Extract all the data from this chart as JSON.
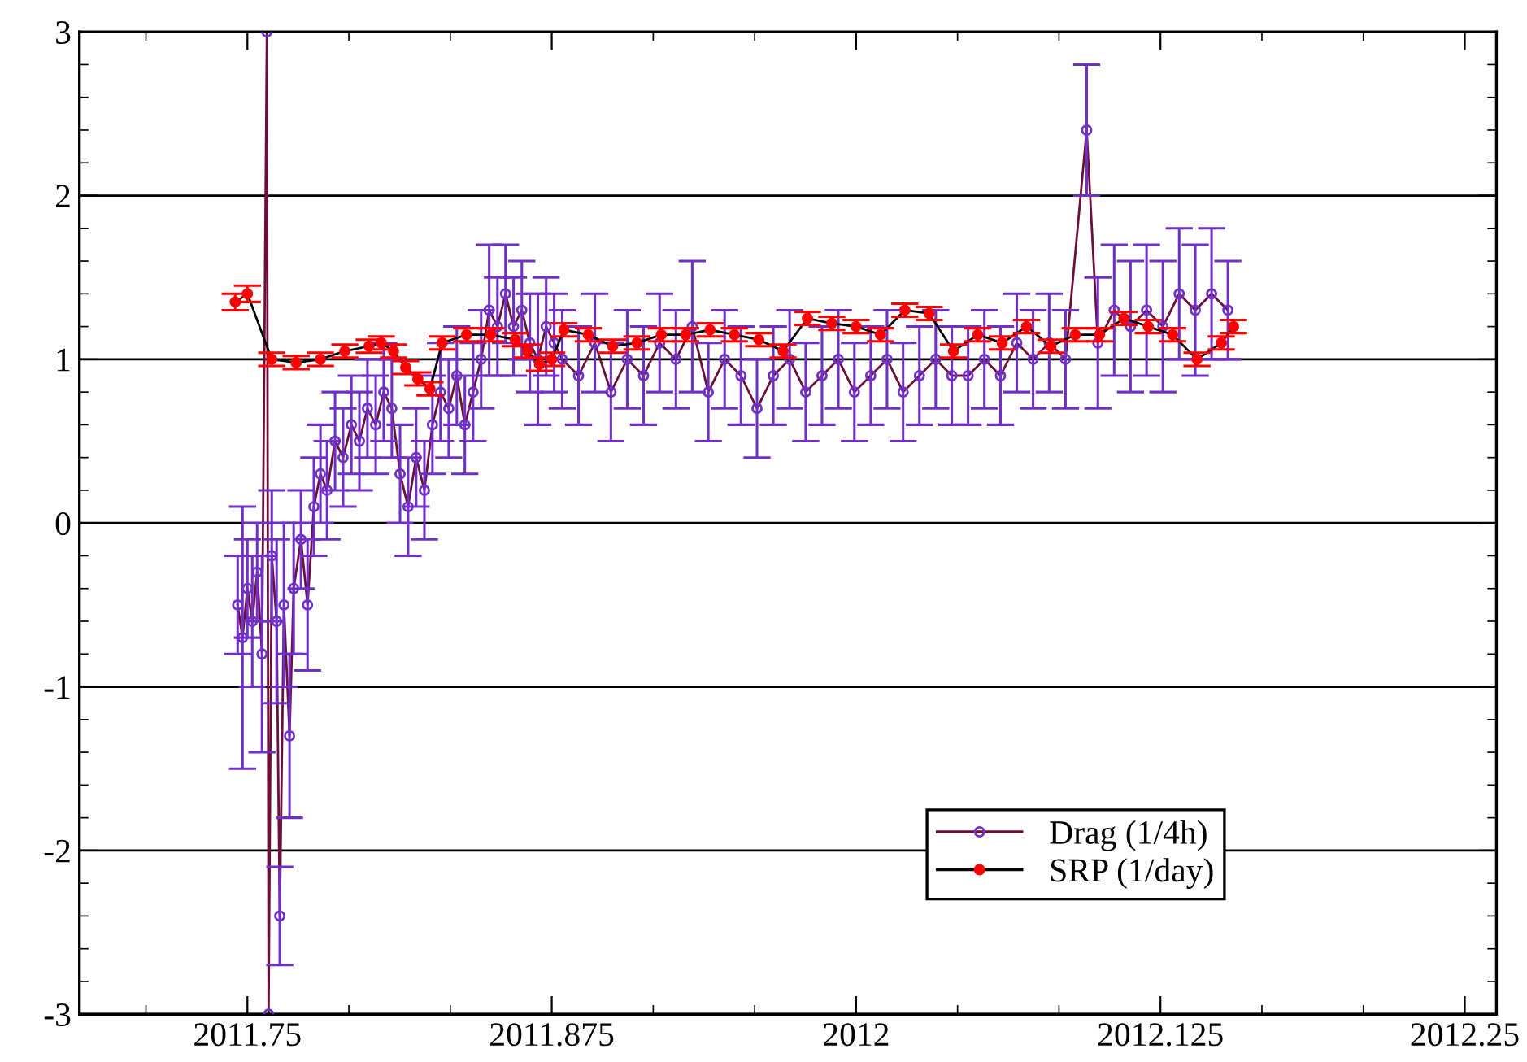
{
  "chart_data": {
    "type": "line",
    "xlim": [
      2011.681,
      2012.263
    ],
    "ylim": [
      -3,
      3
    ],
    "xticks": [
      2011.75,
      2011.875,
      2012,
      2012.125,
      2012.25
    ],
    "yticks": [
      -3,
      -2,
      -1,
      0,
      1,
      2,
      3
    ],
    "grid": "y",
    "legend": "bottom right",
    "marker": "circle",
    "series": [
      {
        "name": "Drag (1/4h)",
        "color": "#7030c8",
        "x": [
          2011.746,
          2011.748,
          2011.75,
          2011.752,
          2011.754,
          2011.756,
          2011.758,
          2011.7587,
          2011.76,
          2011.762,
          2011.7633,
          2011.765,
          2011.7673,
          2011.769,
          2011.772,
          2011.7747,
          2011.7773,
          2011.78,
          2011.7827,
          2011.786,
          2011.7893,
          2011.7927,
          2011.796,
          2011.7993,
          2011.8027,
          2011.806,
          2011.8093,
          2011.8127,
          2011.816,
          2011.8193,
          2011.8227,
          2011.826,
          2011.8293,
          2011.8327,
          2011.836,
          2011.8393,
          2011.8427,
          2011.846,
          2011.8493,
          2011.8527,
          2011.856,
          2011.8593,
          2011.8627,
          2011.866,
          2011.8693,
          2011.8727,
          2011.876,
          2011.8793,
          2011.886,
          2011.8927,
          2011.8993,
          2011.906,
          2011.9127,
          2011.9193,
          2011.926,
          2011.9327,
          2011.9393,
          2011.946,
          2011.9527,
          2011.9593,
          2011.966,
          2011.9727,
          2011.9793,
          2011.986,
          2011.9927,
          2011.9993,
          2012.006,
          2012.0127,
          2012.0193,
          2012.026,
          2012.0327,
          2012.0393,
          2012.046,
          2012.0527,
          2012.0593,
          2012.066,
          2012.0727,
          2012.0793,
          2012.086,
          2012.0947,
          2012.0993,
          2012.106,
          2012.1127,
          2012.1193,
          2012.126,
          2012.1327,
          2012.1393,
          2012.146,
          2012.1527
        ],
        "values": [
          -0.5,
          -0.7,
          -0.4,
          -0.6,
          -0.3,
          -0.8,
          3.0,
          -3.0,
          -0.2,
          -0.6,
          -2.4,
          -0.5,
          -1.3,
          -0.4,
          -0.1,
          -0.5,
          0.1,
          0.3,
          0.2,
          0.5,
          0.4,
          0.6,
          0.5,
          0.7,
          0.6,
          0.8,
          0.7,
          0.3,
          0.1,
          0.4,
          0.2,
          0.6,
          0.8,
          0.7,
          0.9,
          0.6,
          0.8,
          1.0,
          1.3,
          1.2,
          1.4,
          1.2,
          1.3,
          1.1,
          1.0,
          1.2,
          1.1,
          1.0,
          0.9,
          1.1,
          0.8,
          1.0,
          0.9,
          1.1,
          1.0,
          1.2,
          0.8,
          1.0,
          0.9,
          0.7,
          0.9,
          1.0,
          0.8,
          0.9,
          1.0,
          0.8,
          0.9,
          1.0,
          0.8,
          0.9,
          1.0,
          0.9,
          0.9,
          1.0,
          0.9,
          1.1,
          1.0,
          1.1,
          1.0,
          2.4,
          1.1,
          1.3,
          1.2,
          1.3,
          1.2,
          1.4,
          1.3,
          1.4,
          1.3
        ],
        "errors": [
          0.3,
          0.8,
          0.3,
          0.4,
          0.3,
          0.6,
          null,
          null,
          0.4,
          0.5,
          0.3,
          0.5,
          0.5,
          0.4,
          0.3,
          0.4,
          0.3,
          0.3,
          0.3,
          0.3,
          0.3,
          0.3,
          0.3,
          0.3,
          0.3,
          0.3,
          0.3,
          0.3,
          0.3,
          0.3,
          0.3,
          0.3,
          0.3,
          0.3,
          0.3,
          0.3,
          0.3,
          0.3,
          0.4,
          0.3,
          0.3,
          0.3,
          0.3,
          0.3,
          0.4,
          0.3,
          0.3,
          0.3,
          0.3,
          0.3,
          0.3,
          0.3,
          0.3,
          0.3,
          0.3,
          0.4,
          0.3,
          0.3,
          0.3,
          0.3,
          0.3,
          0.3,
          0.3,
          0.3,
          0.3,
          0.3,
          0.3,
          0.3,
          0.3,
          0.3,
          0.3,
          0.3,
          0.3,
          0.3,
          0.3,
          0.3,
          0.3,
          0.3,
          0.3,
          0.4,
          0.4,
          0.4,
          0.4,
          0.4,
          0.4,
          0.4,
          0.4,
          0.4,
          0.3
        ]
      },
      {
        "name": "SRP (1/day)",
        "color": "#ff0000",
        "x": [
          2011.745,
          2011.75,
          2011.76,
          2011.77,
          2011.78,
          2011.79,
          2011.8,
          2011.805,
          2011.81,
          2011.815,
          2011.82,
          2011.825,
          2011.83,
          2011.84,
          2011.85,
          2011.86,
          2011.865,
          2011.87,
          2011.875,
          2011.88,
          2011.89,
          2011.9,
          2011.91,
          2011.92,
          2011.93,
          2011.94,
          2011.95,
          2011.96,
          2011.97,
          2011.98,
          2011.99,
          2012.0,
          2012.01,
          2012.02,
          2012.03,
          2012.04,
          2012.05,
          2012.06,
          2012.07,
          2012.08,
          2012.09,
          2012.1,
          2012.11,
          2012.12,
          2012.13,
          2012.14,
          2012.15,
          2012.155
        ],
        "values": [
          1.35,
          1.4,
          1.0,
          0.98,
          1.0,
          1.05,
          1.08,
          1.1,
          1.05,
          0.95,
          0.88,
          0.82,
          1.1,
          1.15,
          1.15,
          1.12,
          1.05,
          0.97,
          1.0,
          1.18,
          1.15,
          1.08,
          1.1,
          1.15,
          1.15,
          1.18,
          1.15,
          1.12,
          1.05,
          1.25,
          1.22,
          1.2,
          1.15,
          1.3,
          1.28,
          1.05,
          1.15,
          1.1,
          1.2,
          1.08,
          1.15,
          1.15,
          1.25,
          1.2,
          1.15,
          1.0,
          1.1,
          1.2
        ],
        "errors": [
          0.05,
          0.05,
          0.04,
          0.04,
          0.04,
          0.04,
          0.04,
          0.04,
          0.04,
          0.04,
          0.04,
          0.04,
          0.04,
          0.04,
          0.04,
          0.04,
          0.04,
          0.04,
          0.04,
          0.04,
          0.04,
          0.04,
          0.04,
          0.04,
          0.04,
          0.04,
          0.04,
          0.04,
          0.04,
          0.04,
          0.04,
          0.04,
          0.04,
          0.04,
          0.04,
          0.04,
          0.04,
          0.04,
          0.04,
          0.04,
          0.04,
          0.04,
          0.04,
          0.04,
          0.04,
          0.04,
          0.04,
          0.04
        ]
      }
    ]
  }
}
